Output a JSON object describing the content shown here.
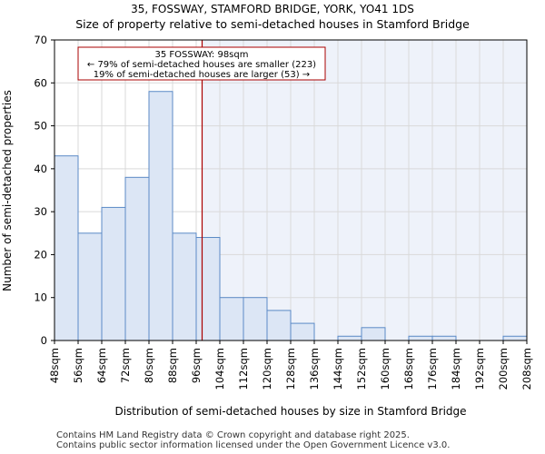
{
  "header": {
    "title_line1": "35, FOSSWAY, STAMFORD BRIDGE, YORK, YO41 1DS",
    "title_line2": "Size of property relative to semi-detached houses in Stamford Bridge"
  },
  "footer": {
    "line1": "Contains HM Land Registry data © Crown copyright and database right 2025.",
    "line2": "Contains public sector information licensed under the Open Government Licence v3.0."
  },
  "colors": {
    "bar_fill": "#dce6f5",
    "bar_stroke": "#5b8ac6",
    "marker": "#aa0000",
    "shade": "#eef2fa",
    "grid": "#d9d9d9"
  },
  "chart_data": {
    "type": "bar",
    "xlabel": "Distribution of semi-detached houses by size in Stamford Bridge",
    "ylabel": "Number of semi-detached properties",
    "ylim": [
      0,
      70
    ],
    "yticks": [
      0,
      10,
      20,
      30,
      40,
      50,
      60,
      70
    ],
    "bin_edges": [
      48,
      56,
      64,
      72,
      80,
      88,
      96,
      104,
      112,
      120,
      128,
      136,
      144,
      152,
      160,
      168,
      176,
      184,
      192,
      200,
      208
    ],
    "tick_labels": [
      "48sqm",
      "56sqm",
      "64sqm",
      "72sqm",
      "80sqm",
      "88sqm",
      "96sqm",
      "104sqm",
      "112sqm",
      "120sqm",
      "128sqm",
      "136sqm",
      "144sqm",
      "152sqm",
      "160sqm",
      "168sqm",
      "176sqm",
      "184sqm",
      "192sqm",
      "200sqm",
      "208sqm"
    ],
    "values": [
      43,
      25,
      31,
      38,
      58,
      25,
      24,
      10,
      10,
      7,
      4,
      0,
      1,
      3,
      0,
      1,
      1,
      0,
      0,
      1
    ],
    "grid": true,
    "marker": {
      "value": 98,
      "annotation": [
        "35 FOSSWAY: 98sqm",
        "← 79% of semi-detached houses are smaller (223)",
        "19% of semi-detached houses are larger (53) →"
      ]
    }
  }
}
